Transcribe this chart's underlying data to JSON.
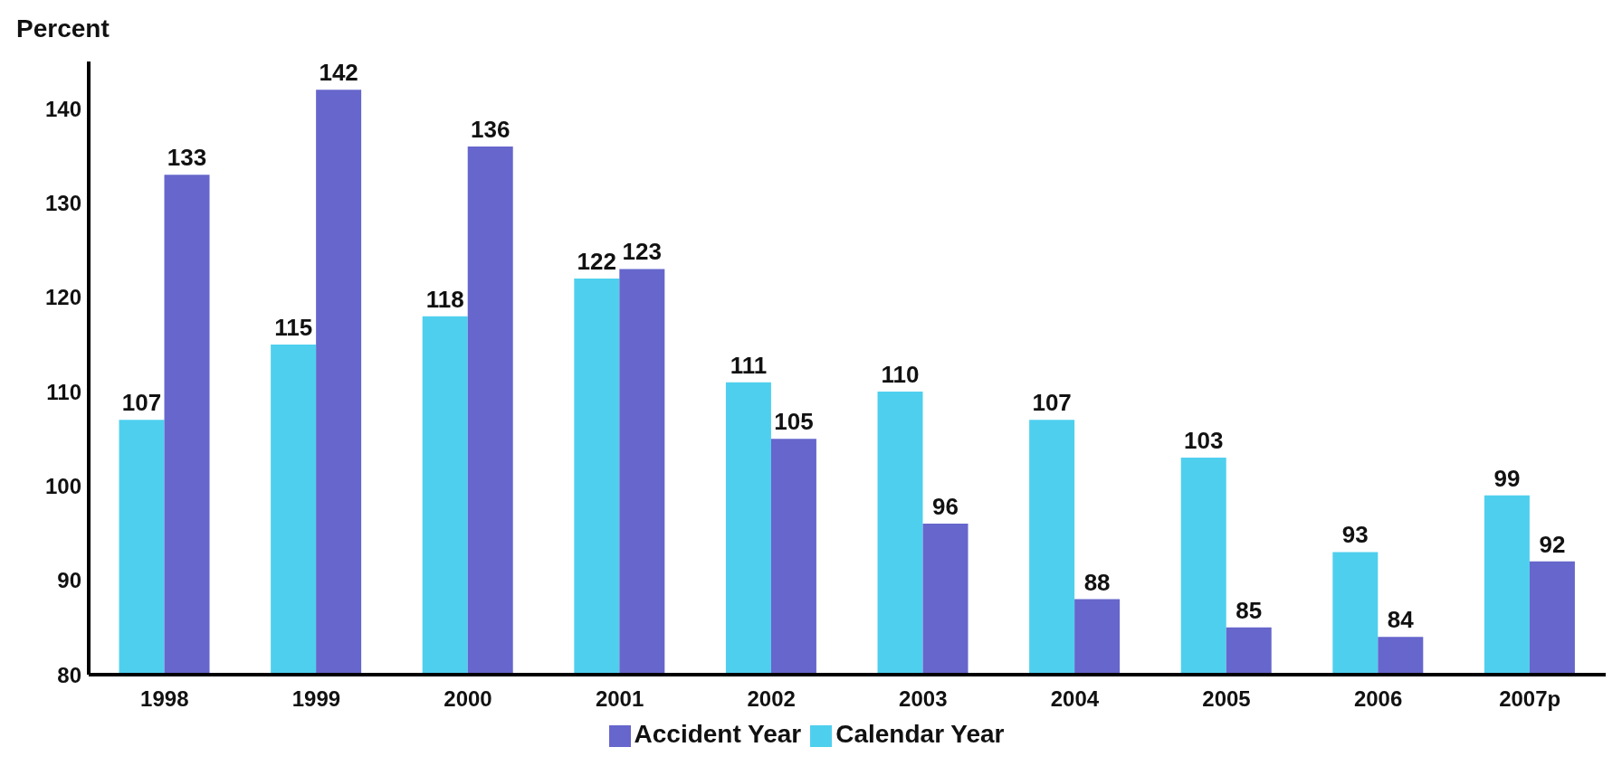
{
  "chart_data": {
    "type": "bar",
    "ylabel": "Percent",
    "categories": [
      "1998",
      "1999",
      "2000",
      "2001",
      "2002",
      "2003",
      "2004",
      "2005",
      "2006",
      "2007p"
    ],
    "series": [
      {
        "name": "Calendar Year",
        "color": "#4fcfee",
        "values": [
          107,
          115,
          118,
          122,
          111,
          110,
          107,
          103,
          93,
          99
        ]
      },
      {
        "name": "Accident Year",
        "color": "#6666cc",
        "values": [
          133,
          142,
          136,
          123,
          105,
          96,
          88,
          85,
          84,
          92
        ]
      }
    ],
    "ylim": [
      80,
      145
    ],
    "yticks": [
      80,
      90,
      100,
      110,
      120,
      130,
      140
    ],
    "data_labels": true,
    "legend": "bottom",
    "grid": false
  }
}
